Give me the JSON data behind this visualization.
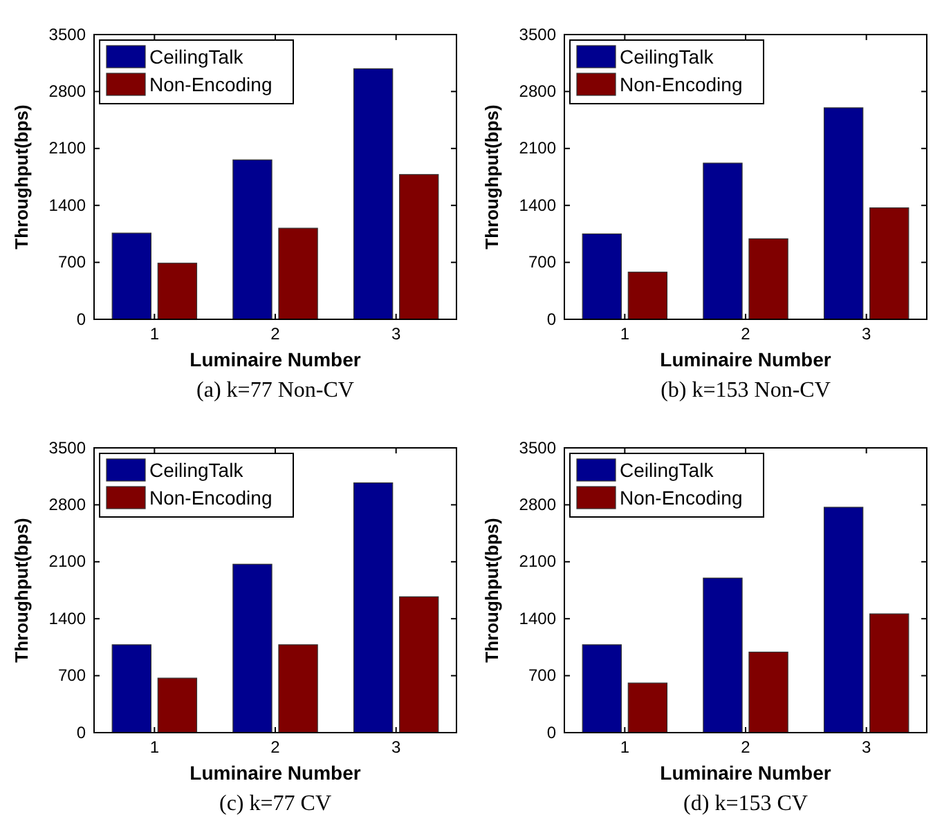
{
  "chart_data": [
    {
      "type": "bar",
      "title": "(a) k=77 Non-CV",
      "xlabel": "Luminaire Number",
      "ylabel": "Throughput(bps)",
      "categories": [
        "1",
        "2",
        "3"
      ],
      "ylim": [
        0,
        3500
      ],
      "yticks": [
        0,
        700,
        1400,
        2100,
        2800,
        3500
      ],
      "legend": "top left",
      "grid": false,
      "series": [
        {
          "name": "CeilingTalk",
          "color": "#00008f",
          "values": [
            1060,
            1960,
            3080
          ]
        },
        {
          "name": "Non-Encoding",
          "color": "#800000",
          "values": [
            690,
            1120,
            1780
          ]
        }
      ]
    },
    {
      "type": "bar",
      "title": "(b) k=153 Non-CV",
      "xlabel": "Luminaire Number",
      "ylabel": "Throughput(bps)",
      "categories": [
        "1",
        "2",
        "3"
      ],
      "ylim": [
        0,
        3500
      ],
      "yticks": [
        0,
        700,
        1400,
        2100,
        2800,
        3500
      ],
      "legend": "top left",
      "grid": false,
      "series": [
        {
          "name": "CeilingTalk",
          "color": "#00008f",
          "values": [
            1050,
            1920,
            2600
          ]
        },
        {
          "name": "Non-Encoding",
          "color": "#800000",
          "values": [
            580,
            990,
            1370
          ]
        }
      ]
    },
    {
      "type": "bar",
      "title": "(c) k=77 CV",
      "xlabel": "Luminaire Number",
      "ylabel": "Throughput(bps)",
      "categories": [
        "1",
        "2",
        "3"
      ],
      "ylim": [
        0,
        3500
      ],
      "yticks": [
        0,
        700,
        1400,
        2100,
        2800,
        3500
      ],
      "legend": "top left",
      "grid": false,
      "series": [
        {
          "name": "CeilingTalk",
          "color": "#00008f",
          "values": [
            1080,
            2070,
            3070
          ]
        },
        {
          "name": "Non-Encoding",
          "color": "#800000",
          "values": [
            670,
            1080,
            1670
          ]
        }
      ]
    },
    {
      "type": "bar",
      "title": "(d) k=153 CV",
      "xlabel": "Luminaire Number",
      "ylabel": "Throughput(bps)",
      "categories": [
        "1",
        "2",
        "3"
      ],
      "ylim": [
        0,
        3500
      ],
      "yticks": [
        0,
        700,
        1400,
        2100,
        2800,
        3500
      ],
      "legend": "top left",
      "grid": false,
      "series": [
        {
          "name": "CeilingTalk",
          "color": "#00008f",
          "values": [
            1080,
            1900,
            2770
          ]
        },
        {
          "name": "Non-Encoding",
          "color": "#800000",
          "values": [
            610,
            990,
            1460
          ]
        }
      ]
    }
  ]
}
